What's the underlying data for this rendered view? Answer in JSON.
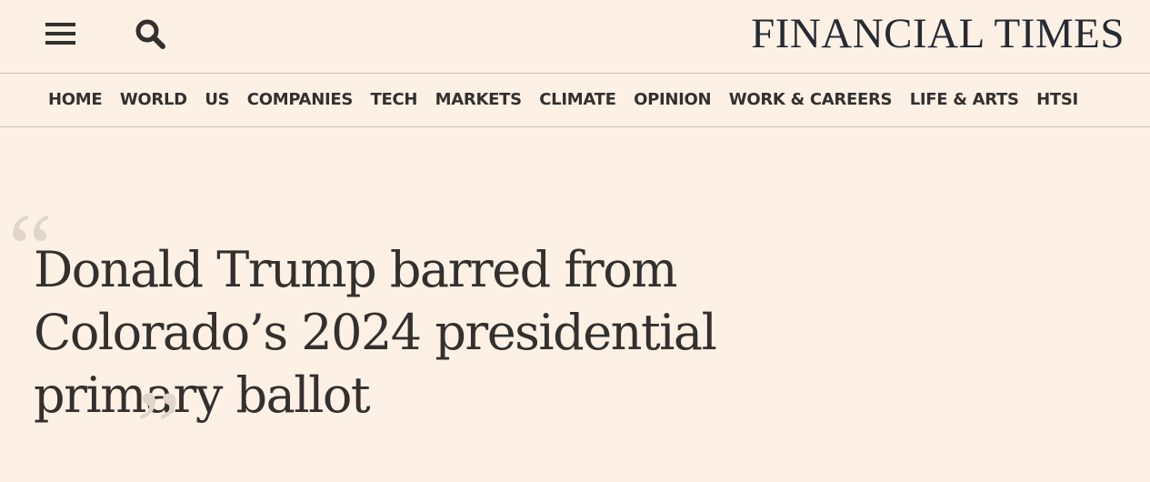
{
  "header": {
    "menu_icon": "hamburger-menu-icon",
    "search_icon": "search-icon",
    "logo_text": "FINANCIAL TIMES"
  },
  "nav": {
    "items": [
      "HOME",
      "WORLD",
      "US",
      "COMPANIES",
      "TECH",
      "MARKETS",
      "CLIMATE",
      "OPINION",
      "WORK & CAREERS",
      "LIFE & ARTS",
      "HTSI"
    ]
  },
  "article": {
    "quote_open": "“",
    "quote_close": "”",
    "headline": "Donald Trump barred from Colorado’s 2024 presidential primary ballot"
  },
  "colors": {
    "background": "#fdf1e5",
    "text": "#33302e",
    "divider": "#cdc3b8",
    "quote_marks": "#e2d6cb"
  }
}
